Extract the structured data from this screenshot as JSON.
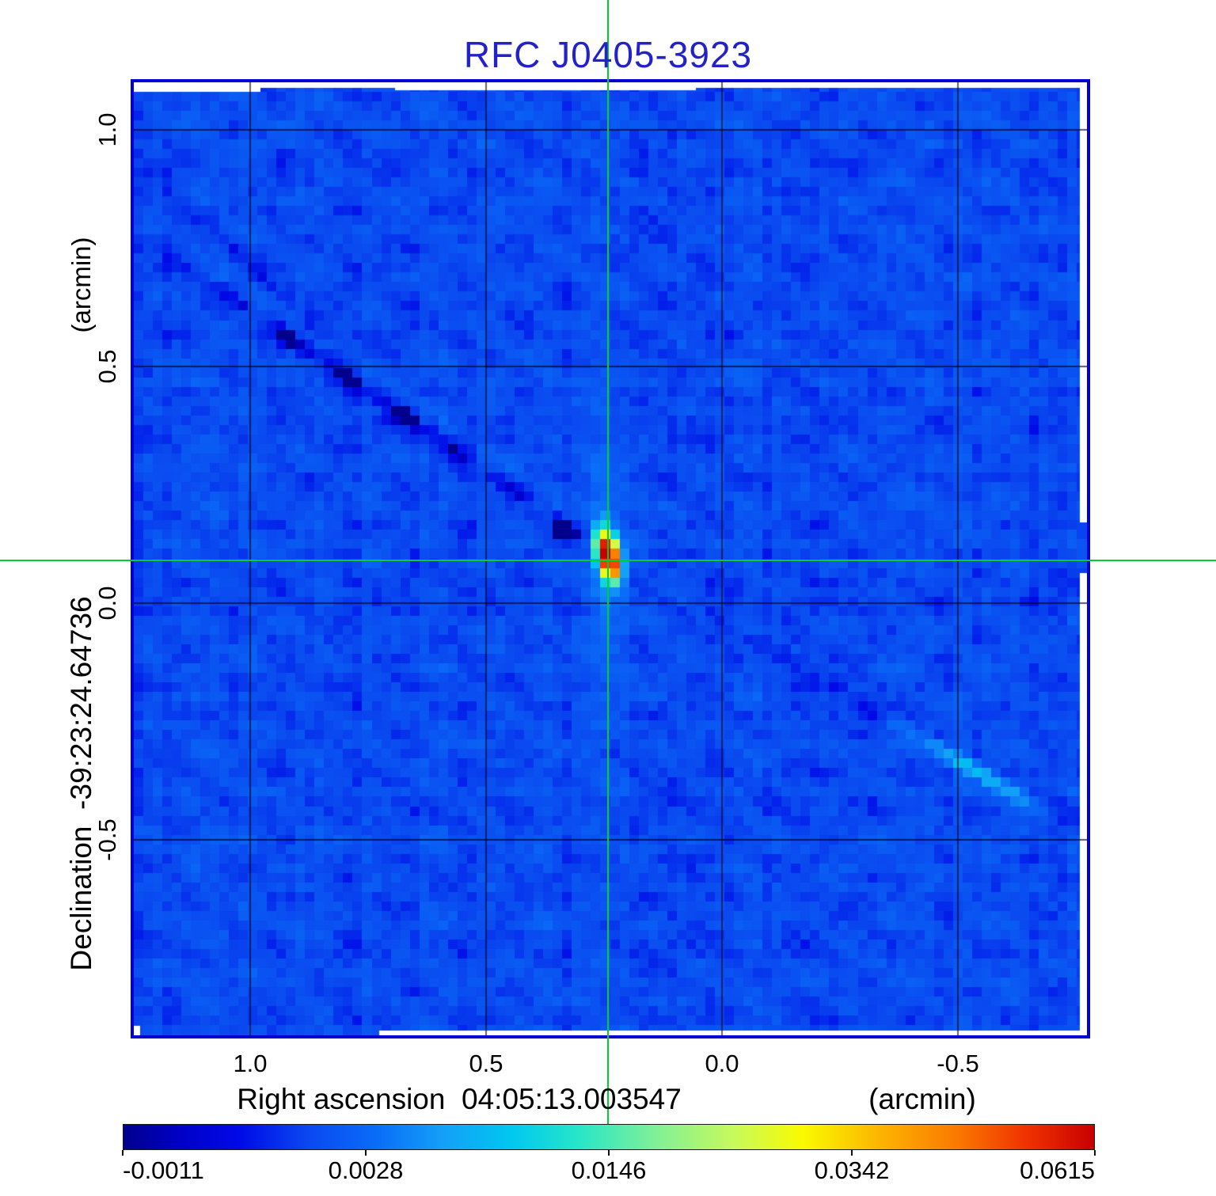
{
  "title": "RFC J0405-3923",
  "title_color": "#2222c8",
  "frame_color": "#0000d4",
  "background_color": "#0a48f0",
  "axes": {
    "x": {
      "label": "Right ascension  04:05:13.003547",
      "unit": "(arcmin)",
      "ticks": [
        "1.0",
        "0.5",
        "0.0",
        "-0.5"
      ],
      "values": [
        1.0,
        0.5,
        0.0,
        -0.5
      ]
    },
    "y": {
      "label": "Declination  -39:23:24.64736",
      "unit": "(arcmin)",
      "ticks": [
        "1.0",
        "0.5",
        "0.0",
        "-0.5"
      ],
      "values": [
        1.0,
        0.5,
        0.0,
        -0.5
      ]
    }
  },
  "colorbar": {
    "labels": [
      "-0.0011",
      "0.0028",
      "0.0146",
      "0.0342",
      "0.0615"
    ],
    "values": [
      -0.0011,
      0.0028,
      0.0146,
      0.0342,
      0.0615
    ],
    "scale": "sqrt"
  },
  "crosshair": {
    "color": "#00cc33",
    "ra_arcmin": 0.2416,
    "dec_arcmin": 0.0903
  },
  "chart_data": {
    "type": "heatmap",
    "title": "RFC J0405-3923",
    "target": "RFC J0405-3923",
    "xlabel": "Right ascension  04:05:13.003547 (arcmin)",
    "ylabel": "Declination  -39:23:24.64736 (arcmin)",
    "x_range_arcmin": [
      1.247,
      -0.772
    ],
    "y_range_arcmin": [
      1.1,
      -0.913
    ],
    "grid": true,
    "gridline_values_arcmin": {
      "x": [
        1.0,
        0.5,
        0.0,
        -0.5
      ],
      "y": [
        1.0,
        0.5,
        0.0,
        -0.5
      ]
    },
    "intensity_min": -0.0011,
    "intensity_max": 0.0615,
    "intensity_ticks": [
      -0.0011,
      0.0028,
      0.0146,
      0.0342,
      0.0615
    ],
    "peak": {
      "value": 0.0615,
      "ra_arcmin": 0.2416,
      "dec_arcmin": 0.0903
    },
    "colormap": [
      [
        0.0,
        "#00008c"
      ],
      [
        0.06,
        "#0000c8"
      ],
      [
        0.12,
        "#000ae8"
      ],
      [
        0.19,
        "#0a48f0"
      ],
      [
        0.26,
        "#0a6cf8"
      ],
      [
        0.33,
        "#14a0f8"
      ],
      [
        0.4,
        "#00c8f0"
      ],
      [
        0.47,
        "#28e6c8"
      ],
      [
        0.55,
        "#82f096"
      ],
      [
        0.63,
        "#c8fa5a"
      ],
      [
        0.7,
        "#fafa00"
      ],
      [
        0.78,
        "#fcb400"
      ],
      [
        0.86,
        "#fa7800"
      ],
      [
        0.93,
        "#f03200"
      ],
      [
        1.0,
        "#c80000"
      ]
    ],
    "features": [
      "compact bright source at crosshair center with red core and yellow-cyan halo, elongated nearly north-south",
      "dark negative sidelobe streak running diagonally from upper-left toward the source",
      "fainter dark sidelobe streak continuing to lower-right with a light-blue bright patch",
      "blue noise background with faint diagonal ripple and vertical striping near the source column"
    ]
  }
}
